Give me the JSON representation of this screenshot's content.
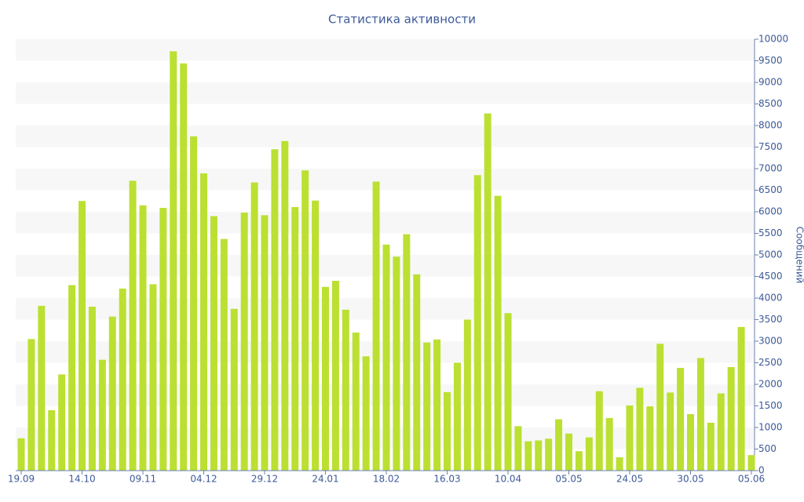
{
  "chart_data": {
    "type": "bar",
    "title": "Статистика активности",
    "y_label": "Сообщений",
    "color": "#bbe032",
    "categories": [
      "19.09",
      null,
      null,
      null,
      null,
      null,
      "14.10",
      null,
      null,
      null,
      null,
      null,
      "09.11",
      null,
      null,
      null,
      null,
      null,
      "04.12",
      null,
      null,
      null,
      null,
      null,
      "29.12",
      null,
      null,
      null,
      null,
      null,
      "24.01",
      null,
      null,
      null,
      null,
      null,
      "18.02",
      null,
      null,
      null,
      null,
      null,
      "16.03",
      null,
      null,
      null,
      null,
      null,
      "10.04",
      null,
      null,
      null,
      null,
      null,
      "05.05",
      null,
      null,
      null,
      null,
      null,
      "24.05",
      null,
      null,
      null,
      null,
      null,
      "30.05",
      null,
      null,
      null,
      null,
      null,
      "05.06"
    ],
    "values": [
      750,
      3050,
      3820,
      1400,
      2230,
      4300,
      6250,
      3800,
      2570,
      3570,
      4220,
      6720,
      6150,
      4320,
      6090,
      9720,
      9440,
      7750,
      6890,
      5900,
      5370,
      3750,
      5980,
      6680,
      5920,
      7450,
      7640,
      6110,
      6960,
      6260,
      4260,
      4400,
      3730,
      3200,
      2650,
      6700,
      5240,
      4960,
      5480,
      4550,
      2970,
      3040,
      1820,
      2500,
      3500,
      6850,
      8280,
      6370,
      3650,
      1030,
      680,
      700,
      740,
      1190,
      860,
      450,
      770,
      1840,
      1220,
      310,
      1510,
      1920,
      1490,
      2940,
      1810,
      2380,
      1310,
      2610,
      1110,
      1790,
      2400,
      3330,
      360
    ],
    "ylim": [
      0,
      10000
    ],
    "yticks": [
      0,
      500,
      1000,
      1500,
      2000,
      2500,
      3000,
      3500,
      4000,
      4500,
      5000,
      5500,
      6000,
      6500,
      7000,
      7500,
      8000,
      8500,
      9000,
      9500,
      10000
    ],
    "grid": true
  }
}
